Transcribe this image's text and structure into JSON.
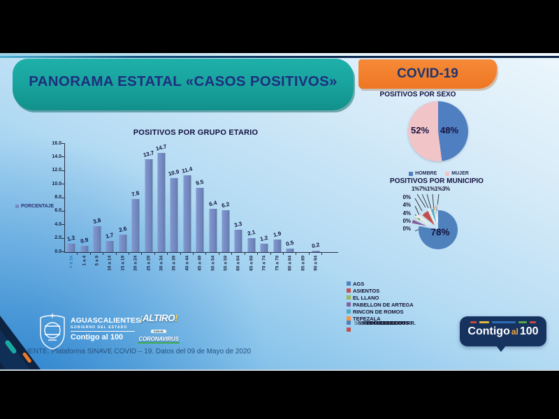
{
  "page": {
    "title_banner": "PANORAMA ESTATAL «CASOS POSITIVOS»",
    "covid_badge": "COVID-19",
    "source_note": "FUENTE. Plataforma SINAVE COVID – 19. Datos del 09 de Mayo de 2020"
  },
  "chart_data": [
    {
      "type": "bar",
      "title": "POSITIVOS POR GRUPO ETARIO",
      "legend": [
        {
          "label": "PORCENTAJE",
          "color": "#7589c2"
        }
      ],
      "legend_position": "left",
      "categories": [
        "< a 1a",
        "1 a 4",
        "5 a 9",
        "10 a 14",
        "15 a 19",
        "20 a 24",
        "25 a 29",
        "30 a 34",
        "35 a 39",
        "40 a 44",
        "45 a 49",
        "50 a 54",
        "55 a 59",
        "60 a 64",
        "65 a 69",
        "70 a 74",
        "75 a 79",
        "80 a 84",
        "85 a 89",
        "90 a 94"
      ],
      "values": [
        1.2,
        0.9,
        3.8,
        1.7,
        2.6,
        7.8,
        13.7,
        14.7,
        10.9,
        11.4,
        9.5,
        6.4,
        6.2,
        3.3,
        2.1,
        1.2,
        1.9,
        0.5,
        0,
        0.2
      ],
      "value_labels": [
        "1.2",
        "0.9",
        "3.8",
        "1.7",
        "2.6",
        "7.8",
        "13.7",
        "14.7",
        "10.9",
        "11.4",
        "9.5",
        "6.4",
        "6.2",
        "3.3",
        "2.1",
        "1.2",
        "1.9",
        "0.5",
        "",
        "0.2"
      ],
      "xlabel": "",
      "ylabel": "",
      "ylim": [
        0,
        16
      ],
      "yticks": [
        "16.0",
        "14.0",
        "12.0",
        "10.0",
        "8.0",
        "6.0",
        "4.0",
        "2.0",
        "0.0"
      ],
      "grid": false,
      "bar_color": "#7589c2"
    },
    {
      "type": "pie",
      "title": "POSITIVOS POR SEXO",
      "legend_position": "bottom",
      "series": [
        {
          "name": "HOMBRE",
          "value": 48,
          "label": "48%",
          "color": "#4f7fc1"
        },
        {
          "name": "MUJER",
          "value": 52,
          "label": "52%",
          "color": "#f1c4c8"
        }
      ]
    },
    {
      "type": "pie",
      "title": "POSITIVOS POR MUNICIPIO",
      "legend_position": "bottom",
      "big_slice": {
        "name": "AGS",
        "value": 78,
        "label": "78%",
        "color": "#4f81bd"
      },
      "small_slices": [
        {
          "value": 4,
          "color": "#8064a2",
          "explode": 15
        },
        {
          "value": 1,
          "color": "#9bbb59",
          "explode": 14
        },
        {
          "value": 3,
          "color": "#eeece1",
          "explode": 13
        },
        {
          "value": 7,
          "color": "#c0504d",
          "explode": 7
        },
        {
          "value": 1,
          "color": "#f2efe4",
          "explode": 9
        },
        {
          "value": 3,
          "color": "#4bacc6",
          "explode": 7
        },
        {
          "value": 1,
          "color": "#f79646",
          "explode": 10
        },
        {
          "value": 1,
          "color": "#4f81bd",
          "explode": 11
        },
        {
          "value": 1,
          "color": "#d99694",
          "explode": 12
        }
      ],
      "callout_labels_top": "1%7%1%1%3%",
      "callout_labels_left": [
        "0%",
        "4%",
        "4%",
        "0%",
        "0%"
      ],
      "legend": [
        {
          "label": "AGS",
          "color": "#4f81bd"
        },
        {
          "label": "ASIENTOS",
          "color": "#c0504d"
        },
        {
          "label": "EL LLANO",
          "color": "#9bbb59"
        },
        {
          "label": "PABELLON DE ARTEGA",
          "color": "#8064a2"
        },
        {
          "label": "RINCON DE ROMOS",
          "color": "#4bacc6"
        },
        {
          "label": "TEPEZALA",
          "color": "#f79646"
        },
        {
          "label": "SN FCO DE LOS R.",
          "color": "#4f81bd",
          "overlapped": true
        },
        {
          "label": "",
          "color": "#c0504d"
        }
      ]
    }
  ],
  "footer": {
    "state_logo": {
      "name": "AGUASCALIENTES",
      "subtitle": "GOBIERNO DEL ESTADO",
      "tagline": "Contigo al 100"
    },
    "altiro_logo": {
      "excl_open": "¡",
      "word": "ALTIRO",
      "excl_close": "!",
      "mid": "CON EL",
      "bottom": "CORONAVIRUS"
    },
    "contigo_bubble": {
      "word1": "Contigo",
      "word2": "al",
      "word3": "100"
    }
  },
  "colors": {
    "banner_teal": "#17a09b",
    "banner_orange": "#ee7623",
    "title_navy": "#1e2f7e",
    "bar_blue": "#7589c2",
    "pie_blue": "#4f7fc1",
    "pie_pink": "#f1c4c8",
    "bubble_navy": "#16335f"
  }
}
